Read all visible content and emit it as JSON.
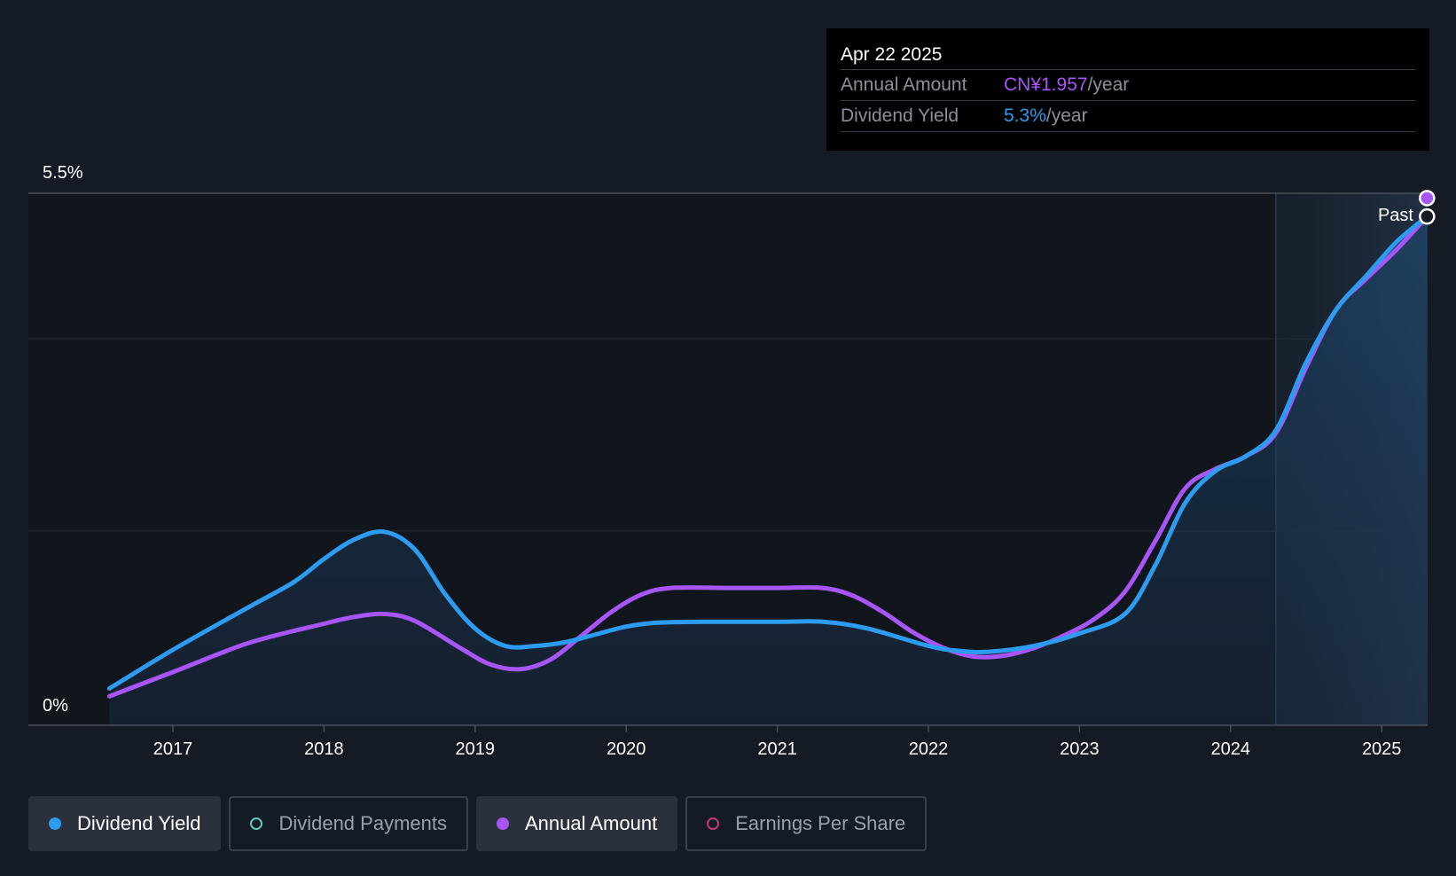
{
  "chart_data": {
    "type": "line",
    "y_unit": "%",
    "ylim": [
      0,
      5.5
    ],
    "y_tick_labels": [
      "0%",
      "5.5%"
    ],
    "x_ticks": [
      "2017",
      "2018",
      "2019",
      "2020",
      "2021",
      "2022",
      "2023",
      "2024",
      "2025"
    ],
    "x_range": [
      2016.58,
      2025.3
    ],
    "past_label": "Past",
    "past_start": 2024.3,
    "series": [
      {
        "name": "Dividend Yield",
        "color": "#2d9cf0",
        "points": [
          [
            2016.58,
            0.38
          ],
          [
            2017.0,
            0.78
          ],
          [
            2017.5,
            1.22
          ],
          [
            2017.8,
            1.48
          ],
          [
            2018.0,
            1.72
          ],
          [
            2018.2,
            1.92
          ],
          [
            2018.4,
            2.0
          ],
          [
            2018.6,
            1.82
          ],
          [
            2018.8,
            1.36
          ],
          [
            2019.0,
            1.0
          ],
          [
            2019.2,
            0.82
          ],
          [
            2019.4,
            0.82
          ],
          [
            2019.6,
            0.86
          ],
          [
            2019.8,
            0.94
          ],
          [
            2020.0,
            1.02
          ],
          [
            2020.2,
            1.06
          ],
          [
            2020.5,
            1.07
          ],
          [
            2021.0,
            1.07
          ],
          [
            2021.3,
            1.07
          ],
          [
            2021.6,
            1.0
          ],
          [
            2022.0,
            0.82
          ],
          [
            2022.2,
            0.77
          ],
          [
            2022.4,
            0.76
          ],
          [
            2022.7,
            0.82
          ],
          [
            2023.0,
            0.95
          ],
          [
            2023.3,
            1.15
          ],
          [
            2023.5,
            1.65
          ],
          [
            2023.7,
            2.3
          ],
          [
            2023.9,
            2.63
          ],
          [
            2024.1,
            2.78
          ],
          [
            2024.3,
            3.05
          ],
          [
            2024.5,
            3.75
          ],
          [
            2024.7,
            4.3
          ],
          [
            2024.9,
            4.65
          ],
          [
            2025.1,
            5.0
          ],
          [
            2025.3,
            5.26
          ]
        ]
      },
      {
        "name": "Annual Amount",
        "color": "#a855f7",
        "points": [
          [
            2016.58,
            0.3
          ],
          [
            2017.0,
            0.55
          ],
          [
            2017.5,
            0.85
          ],
          [
            2018.0,
            1.05
          ],
          [
            2018.2,
            1.12
          ],
          [
            2018.4,
            1.15
          ],
          [
            2018.6,
            1.08
          ],
          [
            2018.9,
            0.8
          ],
          [
            2019.1,
            0.63
          ],
          [
            2019.3,
            0.58
          ],
          [
            2019.5,
            0.68
          ],
          [
            2019.7,
            0.92
          ],
          [
            2019.9,
            1.17
          ],
          [
            2020.1,
            1.35
          ],
          [
            2020.3,
            1.42
          ],
          [
            2020.7,
            1.42
          ],
          [
            2021.0,
            1.42
          ],
          [
            2021.3,
            1.42
          ],
          [
            2021.5,
            1.34
          ],
          [
            2021.7,
            1.17
          ],
          [
            2021.9,
            0.96
          ],
          [
            2022.1,
            0.8
          ],
          [
            2022.3,
            0.71
          ],
          [
            2022.5,
            0.72
          ],
          [
            2022.7,
            0.8
          ],
          [
            2022.9,
            0.93
          ],
          [
            2023.1,
            1.1
          ],
          [
            2023.3,
            1.38
          ],
          [
            2023.5,
            1.9
          ],
          [
            2023.7,
            2.45
          ],
          [
            2023.9,
            2.65
          ],
          [
            2024.1,
            2.78
          ],
          [
            2024.3,
            3.02
          ],
          [
            2024.5,
            3.7
          ],
          [
            2024.7,
            4.3
          ],
          [
            2024.9,
            4.62
          ],
          [
            2025.1,
            4.92
          ],
          [
            2025.3,
            5.26
          ]
        ]
      }
    ]
  },
  "tooltip": {
    "date": "Apr 22 2025",
    "rows": [
      {
        "label": "Annual Amount",
        "value": "CN¥1.957",
        "unit": "/year"
      },
      {
        "label": "Dividend Yield",
        "value": "5.3%",
        "unit": "/year"
      }
    ]
  },
  "legend": [
    {
      "label": "Dividend Yield",
      "color": "#2d9cf0",
      "active": true,
      "filled": true
    },
    {
      "label": "Dividend Payments",
      "color": "#5ec8c0",
      "active": false,
      "filled": false
    },
    {
      "label": "Annual Amount",
      "color": "#a855f7",
      "active": true,
      "filled": true
    },
    {
      "label": "Earnings Per Share",
      "color": "#c03a7a",
      "active": false,
      "filled": false
    }
  ]
}
